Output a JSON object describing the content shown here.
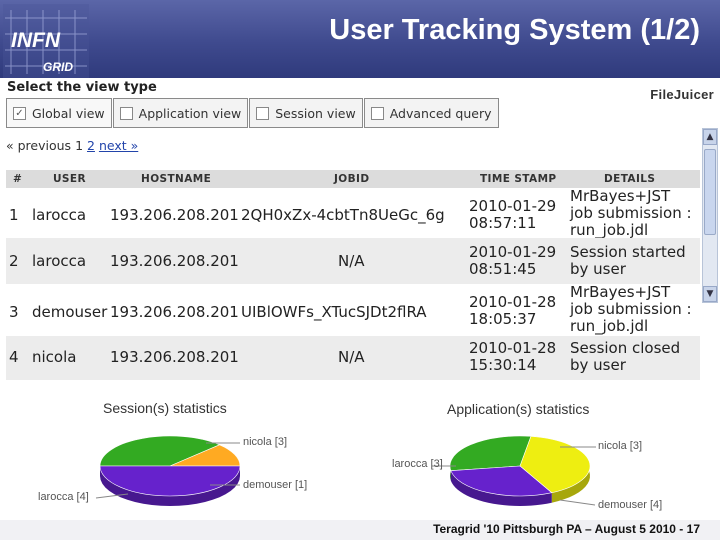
{
  "slide": {
    "title": "User Tracking System (1/2)",
    "logo_line1": "INFN",
    "logo_line2": "GRID",
    "footer": "Teragrid '10 Pittsburgh PA – August 5 2010 - 17"
  },
  "app": {
    "view_title": "Select the view type",
    "brand": "FileJuicer",
    "tabs": [
      {
        "label": "Global view",
        "checked": true
      },
      {
        "label": "Application view",
        "checked": false
      },
      {
        "label": "Session view",
        "checked": false
      },
      {
        "label": "Advanced query",
        "checked": false
      }
    ],
    "pager": {
      "prev": "« previous",
      "current": "1",
      "page2": "2",
      "next": "next »"
    },
    "columns": [
      "#",
      "USER",
      "HOSTNAME",
      "JOBID",
      "TIME STAMP",
      "DETAILS"
    ],
    "rows": [
      {
        "n": "1",
        "user": "larocca",
        "host": "193.206.208.201",
        "jobid": "2QH0xZx-4cbtTn8UeGc_6g",
        "date": "2010-01-29",
        "time": "08:57:11",
        "details": [
          "MrBayes+JST",
          "job submission :",
          "run_job.jdl"
        ]
      },
      {
        "n": "2",
        "user": "larocca",
        "host": "193.206.208.201",
        "jobid": "N/A",
        "date": "2010-01-29",
        "time": "08:51:45",
        "details": [
          "Session started",
          "by user"
        ]
      },
      {
        "n": "3",
        "user": "demouser",
        "host": "193.206.208.201",
        "jobid": "UIBlOWFs_XTucSJDt2flRA",
        "date": "2010-01-28",
        "time": "18:05:37",
        "details": [
          "MrBayes+JST",
          "job submission :",
          "run_job.jdl"
        ]
      },
      {
        "n": "4",
        "user": "nicola",
        "host": "193.206.208.201",
        "jobid": "N/A",
        "date": "2010-01-28",
        "time": "15:30:14",
        "details": [
          "Session closed",
          "by user"
        ]
      }
    ],
    "scroll_up_icon": "triangle-up",
    "scroll_down_icon": "triangle-down"
  },
  "stats": {
    "session_title": "Session(s) statistics",
    "application_title": "Application(s) statistics",
    "session_labels": {
      "nicola": "nicola [3]",
      "demouser": "demouser [1]",
      "larocca": "larocca [4]"
    },
    "application_labels": {
      "nicola": "nicola [3]",
      "larocca": "larocca [3]",
      "demouser": "demouser [4]"
    }
  },
  "chart_data": [
    {
      "type": "pie",
      "title": "Session(s) statistics",
      "slices": [
        {
          "label": "nicola [3]",
          "value": 3,
          "color": "#33aa22"
        },
        {
          "label": "demouser [1]",
          "value": 1,
          "color": "#ffaa22"
        },
        {
          "label": "larocca [4]",
          "value": 4,
          "color": "#6622cc"
        }
      ]
    },
    {
      "type": "pie",
      "title": "Application(s) statistics",
      "slices": [
        {
          "label": "nicola [3]",
          "value": 3,
          "color": "#33aa22"
        },
        {
          "label": "demouser [4]",
          "value": 4,
          "color": "#eeee11"
        },
        {
          "label": "larocca [3]",
          "value": 3,
          "color": "#6622cc"
        }
      ]
    }
  ]
}
